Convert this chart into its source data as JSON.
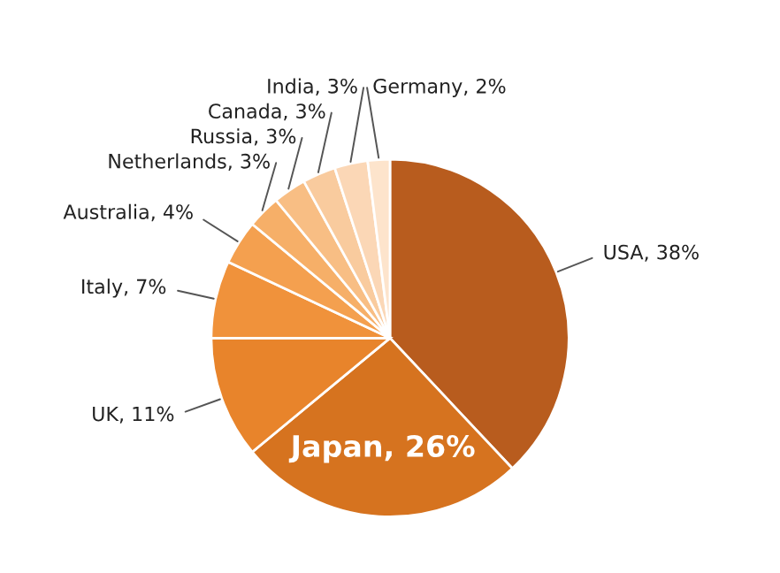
{
  "chart_data": {
    "type": "pie",
    "categories": [
      "USA",
      "Japan",
      "UK",
      "Italy",
      "Australia",
      "Netherlands",
      "Russia",
      "Canada",
      "India",
      "Germany"
    ],
    "values": [
      38,
      26,
      11,
      7,
      4,
      3,
      3,
      3,
      3,
      2
    ],
    "colors": [
      "#b85c1e",
      "#d6731f",
      "#e8842b",
      "#f0923b",
      "#f4a04f",
      "#f6af68",
      "#f8be84",
      "#f9cb9e",
      "#fbd7b6",
      "#fde4cc"
    ],
    "value_labels": [
      "38%",
      "26%",
      "11%",
      "7%",
      "4%",
      "3%",
      "3%",
      "3%",
      "3%",
      "2%"
    ],
    "legend": false
  }
}
